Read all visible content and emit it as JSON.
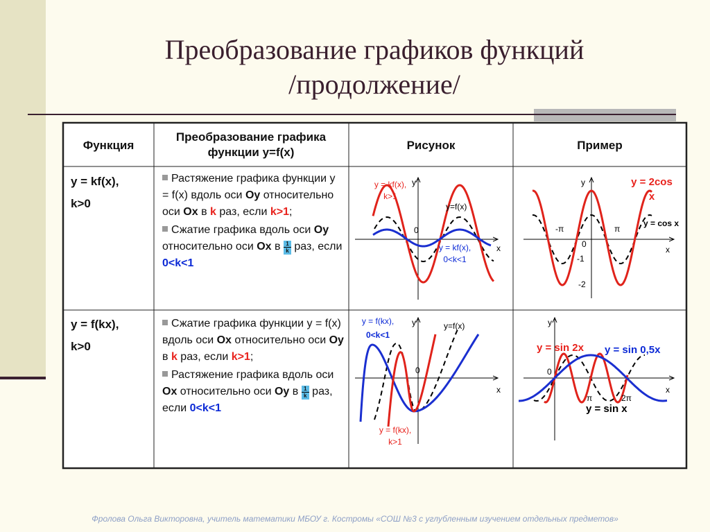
{
  "header": {
    "title": "Преобразование графиков функций",
    "subtitle": "/продолжение/"
  },
  "table": {
    "columns": [
      "Функция",
      "Преобразование графика функции y=f(x)",
      "Рисунок",
      "Пример"
    ],
    "rows": [
      {
        "function": [
          "y = kf(x),",
          "k>0"
        ],
        "description": [
          [
            "Растяжение графика функции y = f(x) вдоль оси ",
            "Oy",
            " относительно оси ",
            "Ox",
            " в ",
            "k",
            " раз, если ",
            "k>1",
            ";"
          ],
          [
            "Сжатие графика вдоль оси ",
            "Oy",
            " относительно оси ",
            "Ox",
            " в ",
            {
              "numerator": "1",
              "denominator": "k"
            },
            " раз, если ",
            "0<k<1"
          ]
        ],
        "figure": {
          "labels": [
            "y = kf(x),",
            "k>1",
            "y",
            "0",
            "y=f(x)",
            "y = kf(x),",
            "0<k<1",
            "x"
          ]
        },
        "example": {
          "labels": [
            "y = 2cos",
            "x",
            "y = cos x",
            "y",
            "-π",
            "π",
            "0",
            "-1",
            "-2",
            "x"
          ]
        }
      },
      {
        "function": [
          "y = f(kx),",
          "k>0"
        ],
        "description": [
          [
            "Сжатие графика функции y = f(x) вдоль оси ",
            "Ox",
            " относительно оси ",
            "Oy",
            " в ",
            "k",
            " раз, если ",
            "k>1",
            ";"
          ],
          [
            "Растяжение графика вдоль оси ",
            "Ox",
            " относительно оси ",
            "Oy",
            " в ",
            {
              "numerator": "1",
              "denominator": "k"
            },
            " раз, если ",
            "0<k<1"
          ]
        ],
        "figure": {
          "labels": [
            "y = f(kx),",
            "0<k<1",
            "y",
            "y=f(x)",
            "0",
            "x",
            "y = f(kx),",
            "k>1"
          ]
        },
        "example": {
          "labels": [
            "y",
            "y = sin 2x",
            "y = sin 0,5x",
            "0",
            "π",
            "2π",
            "y = sin x",
            "x"
          ]
        }
      }
    ]
  },
  "footer": "Фролова Ольга Викторовна, учитель математики МБОУ г. Костромы «СОШ №3 с углубленным изучением отдельных предметов»"
}
